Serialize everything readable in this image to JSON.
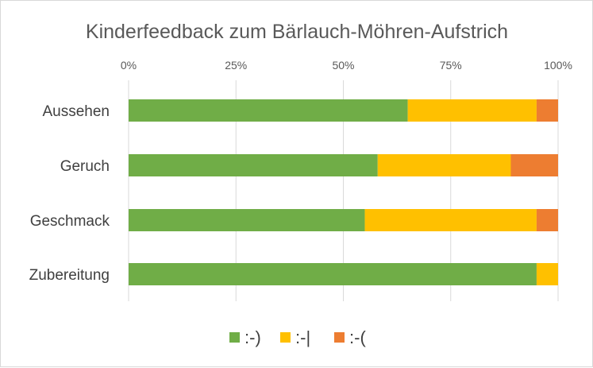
{
  "chart_data": {
    "type": "bar",
    "orientation": "horizontal",
    "stacked": "percent",
    "title": "Kinderfeedback zum Bärlauch-Möhren-Aufstrich",
    "categories": [
      "Aussehen",
      "Geruch",
      "Geschmack",
      "Zubereitung"
    ],
    "series": [
      {
        "name": ":-)",
        "color": "#70ad47",
        "values": [
          65,
          58,
          55,
          95
        ]
      },
      {
        "name": ":-|",
        "color": "#ffc000",
        "values": [
          30,
          31,
          40,
          5
        ]
      },
      {
        "name": ":-(",
        "color": "#ed7d31",
        "values": [
          5,
          11,
          5,
          0
        ]
      }
    ],
    "x_ticks": [
      "0%",
      "25%",
      "50%",
      "75%",
      "100%"
    ],
    "xlim": [
      0,
      100
    ],
    "x_axis_position": "top",
    "grid": true,
    "legend_position": "bottom"
  }
}
